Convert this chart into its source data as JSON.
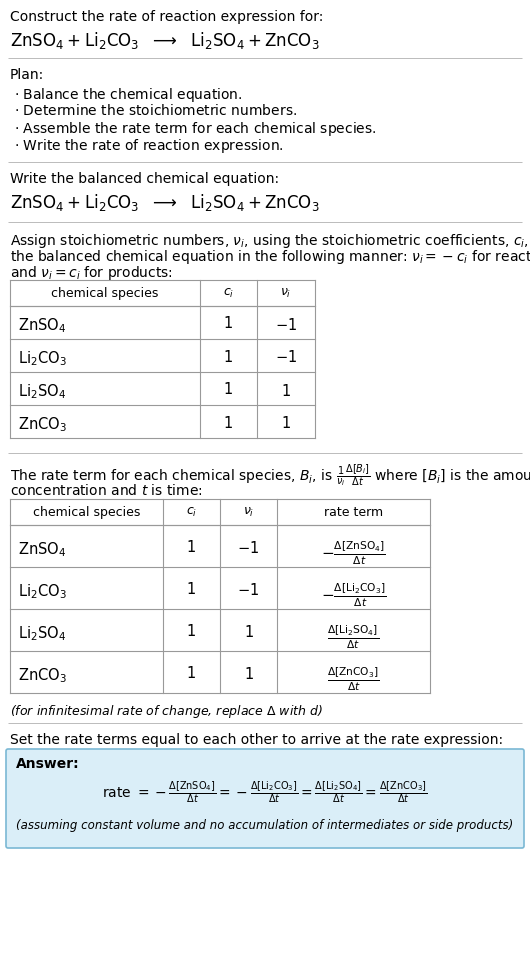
{
  "bg_color": "#ffffff",
  "answer_box_color": "#daeef8",
  "answer_box_border": "#7ab8d4",
  "separator_color": "#bbbbbb",
  "table_border_color": "#999999"
}
